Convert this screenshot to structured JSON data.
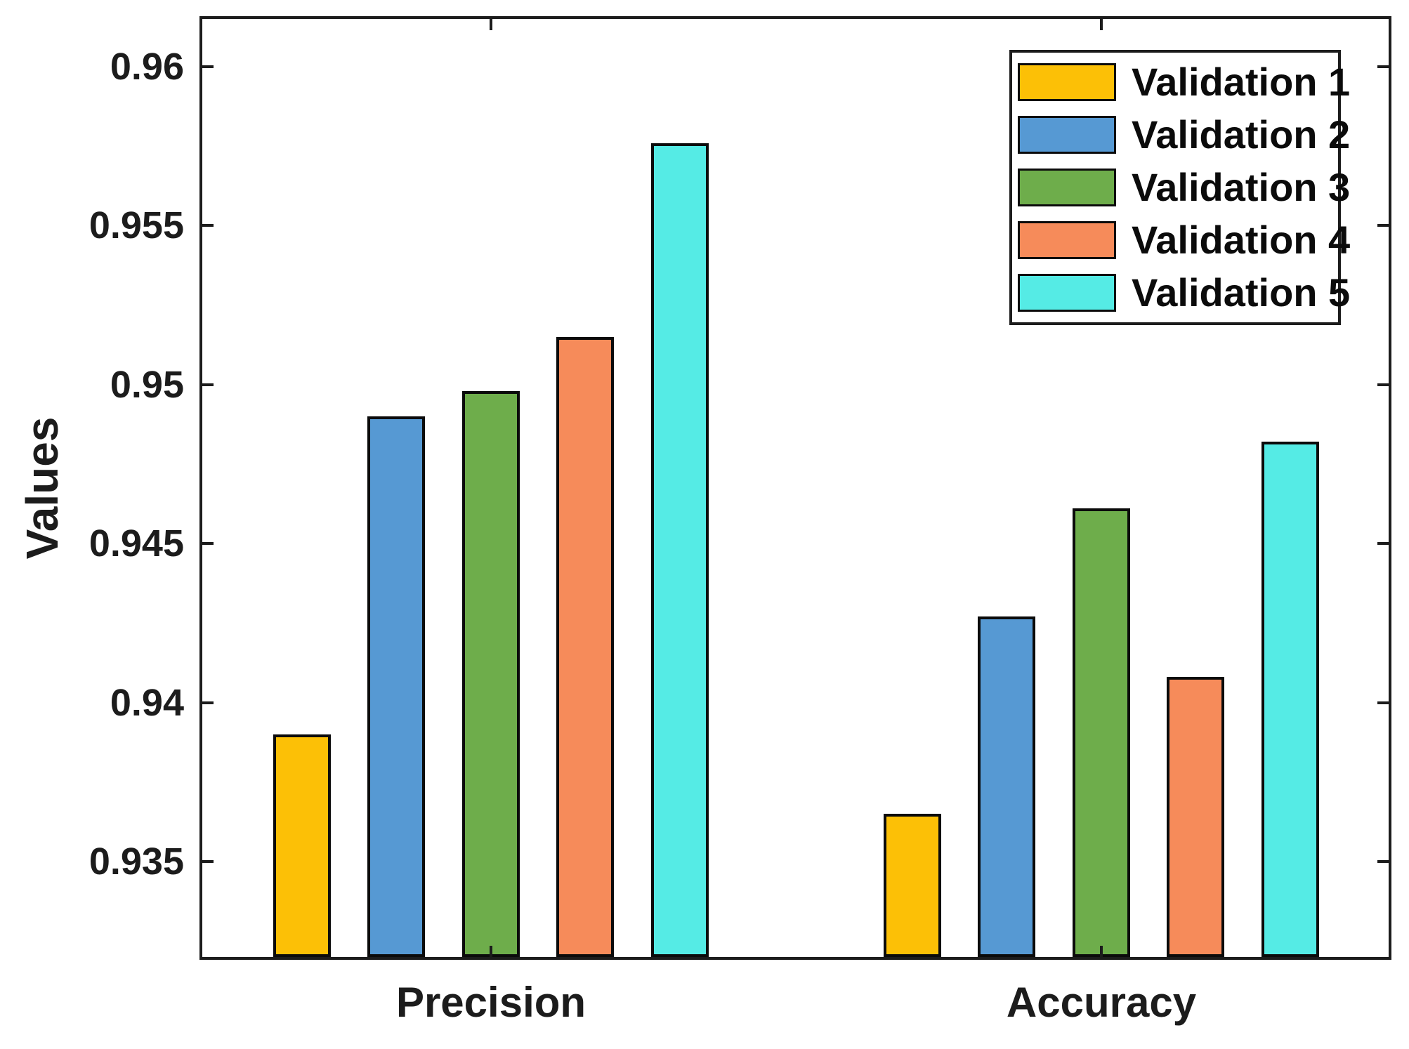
{
  "chart_data": {
    "type": "bar",
    "title": "",
    "ylabel": "Values",
    "xlabel": "",
    "categories": [
      "Precision",
      "Accuracy"
    ],
    "series": [
      {
        "name": "Validation 1",
        "color": "#fcc006",
        "values": [
          0.939,
          0.9365
        ]
      },
      {
        "name": "Validation 2",
        "color": "#5699d3",
        "values": [
          0.949,
          0.9427
        ]
      },
      {
        "name": "Validation 3",
        "color": "#6ead4b",
        "values": [
          0.9498,
          0.9461
        ]
      },
      {
        "name": "Validation 4",
        "color": "#f68b5a",
        "values": [
          0.9515,
          0.9408
        ]
      },
      {
        "name": "Validation 5",
        "color": "#55ebe5",
        "values": [
          0.9576,
          0.9482
        ]
      }
    ],
    "yticks": [
      0.935,
      0.94,
      0.945,
      0.95,
      0.955,
      0.96
    ],
    "ytick_labels": [
      "0.935",
      "0.94",
      "0.945",
      "0.95",
      "0.955",
      "0.96"
    ],
    "ylim": [
      0.932,
      0.9615
    ],
    "grid": false,
    "legend_position": "top-right",
    "axis_color": "#1c1c1c",
    "text_color": "#1c1c1c",
    "bar_edge_color": "#0b0b0b"
  }
}
